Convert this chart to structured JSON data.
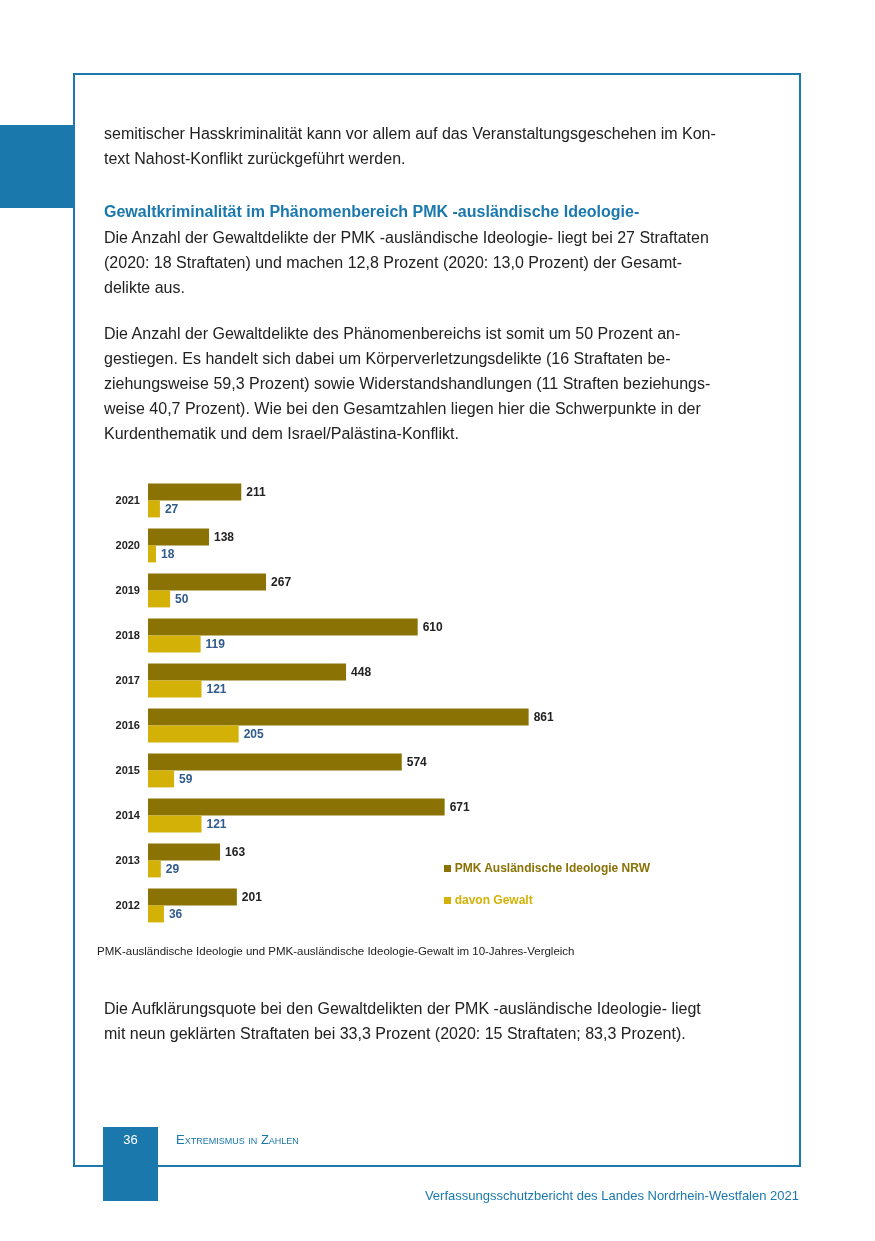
{
  "chart_data": {
    "type": "bar",
    "orientation": "horizontal",
    "title": "Gewaltkriminalität im Phänomenbereich PMK -ausländische Ideologie-",
    "categories": [
      "2021",
      "2020",
      "2019",
      "2018",
      "2017",
      "2016",
      "2015",
      "2014",
      "2013",
      "2012"
    ],
    "series": [
      {
        "name": "PMK Ausländische Ideologie NRW",
        "color": "#8a7205",
        "values": [
          211,
          138,
          267,
          610,
          448,
          861,
          574,
          671,
          163,
          201
        ]
      },
      {
        "name": "davon Gewalt",
        "color": "#d4b106",
        "values": [
          27,
          18,
          50,
          119,
          121,
          205,
          59,
          121,
          29,
          36
        ]
      }
    ],
    "data_labels": true,
    "legend": "bottom right",
    "annotations": [
      "semitischer Hasskriminalität kann vor allem auf das Veranstaltungsgeschehen im Kon-\ntext Nahost-Konflikt zurückgeführt werden.",
      "Die Anzahl der Gewaltdelikte der PMK -ausländische Ideologie- liegt bei 27 Straftaten\n(2020: 18 Straftaten) und machen 12,8 Prozent (2020: 13,0 Prozent) der Gesamt-\ndelikte aus.",
      "Die Anzahl der Gewaltdelikte des Phänomenbereichs ist somit um 50 Prozent an-\ngestiegen. Es handelt sich dabei um Körperverletzungsdelikte (16 Straftaten be-\nziehungsweise 59,3 Prozent) sowie Widerstandshandlungen (11 Straften beziehungs-\nweise 40,7 Prozent). Wie bei den Gesamtzahlen liegen hier die Schwerpunkte in der\nKurdenthematik und dem Israel/Palästina-Konflikt.",
      "PMK-ausländische Ideologie und PMK-ausländische Ideologie-Gewalt im 10-Jahres-Vergleich",
      "Die Aufklärungsquote bei den Gewaltdelikten der PMK -ausländische Ideologie- liegt\nmit neun geklärten Straftaten bei 33,3 Prozent (2020: 15 Straftaten; 83,3 Prozent).",
      "36",
      "Extremismus in Zahlen",
      "Verfassungsschutzbericht des Landes Nordrhein-Westfalen 2021"
    ]
  }
}
